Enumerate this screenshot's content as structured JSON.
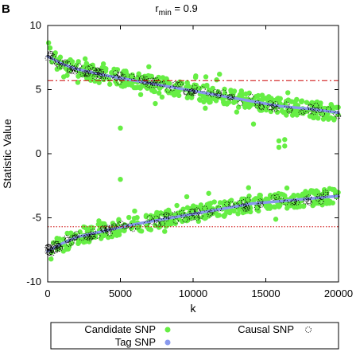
{
  "panel_label": "B",
  "chart_data": {
    "type": "scatter",
    "title_main": "r",
    "title_sub": "min",
    "title_rest": " = 0.9",
    "xlabel": "k",
    "ylabel": "Statistic Value",
    "xlim": [
      0,
      20000
    ],
    "ylim": [
      -10,
      10
    ],
    "x_ticks": [
      0,
      5000,
      10000,
      15000,
      20000
    ],
    "x_tick_labels": [
      "0",
      "5000",
      "10000",
      "15000",
      "20000"
    ],
    "y_ticks": [
      10,
      5,
      0,
      -5,
      -10
    ],
    "y_tick_labels": [
      "10",
      "5",
      "0",
      "-5",
      "-10"
    ],
    "grid": false,
    "legend_position": "bottom",
    "thresholds": [
      {
        "y": 5.7,
        "style": "dash-dot",
        "color": "#cc0000"
      },
      {
        "y": -5.7,
        "style": "dotted",
        "color": "#cc0000"
      }
    ],
    "series": [
      {
        "name": "Candidate SNP",
        "marker": "filled-circle",
        "color": "#66ee44",
        "upper_band_x": [
          0,
          500,
          1000,
          2000,
          3000,
          4000,
          5000,
          6000,
          7000,
          8000,
          9000,
          10000,
          11000,
          12000,
          13000,
          14000,
          15000,
          16000,
          17000,
          18000,
          19000,
          20000
        ],
        "upper_band_y": [
          8.5,
          7.3,
          7.0,
          6.6,
          6.3,
          6.1,
          5.9,
          5.7,
          5.5,
          5.3,
          5.1,
          4.9,
          4.7,
          4.5,
          4.3,
          4.1,
          3.9,
          3.7,
          3.6,
          3.5,
          3.3,
          3.2
        ],
        "lower_band_x": [
          0,
          500,
          1000,
          2000,
          3000,
          4000,
          5000,
          6000,
          7000,
          8000,
          9000,
          10000,
          11000,
          12000,
          13000,
          14000,
          15000,
          16000,
          17000,
          18000,
          19000,
          20000
        ],
        "lower_band_y": [
          -8.5,
          -7.3,
          -7.0,
          -6.5,
          -6.2,
          -6.0,
          -5.7,
          -5.5,
          -5.3,
          -5.1,
          -4.9,
          -4.7,
          -4.5,
          -4.3,
          -4.1,
          -3.9,
          -3.8,
          -3.7,
          -3.6,
          -3.5,
          -3.4,
          -3.3
        ],
        "outliers": [
          {
            "x": 5000,
            "y": 2.0
          },
          {
            "x": 5000,
            "y": -2.0
          },
          {
            "x": 15900,
            "y": 0.5
          },
          {
            "x": 15900,
            "y": 1.0
          },
          {
            "x": 16300,
            "y": 0.6
          },
          {
            "x": 16300,
            "y": 1.1
          }
        ]
      },
      {
        "name": "Tag SNP",
        "marker": "filled-circle",
        "color": "#8899ee",
        "upper_x": [
          0,
          1000,
          2000,
          4000,
          6000,
          8000,
          10000,
          12000,
          14000,
          16000,
          18000,
          20000
        ],
        "upper_y": [
          7.6,
          7.0,
          6.6,
          6.1,
          5.7,
          5.3,
          4.9,
          4.5,
          4.1,
          3.7,
          3.5,
          3.2
        ],
        "lower_x": [
          0,
          1000,
          2000,
          4000,
          6000,
          8000,
          10000,
          12000,
          14000,
          16000,
          18000,
          20000
        ],
        "lower_y": [
          -7.6,
          -7.0,
          -6.5,
          -6.0,
          -5.5,
          -5.1,
          -4.7,
          -4.3,
          -3.9,
          -3.7,
          -3.5,
          -3.3
        ]
      },
      {
        "name": "Causal SNP",
        "marker": "dotted-circle",
        "color": "#000000"
      }
    ]
  },
  "legend": {
    "items": [
      {
        "label": "Candidate SNP",
        "color": "#66ee44",
        "marker": "filled"
      },
      {
        "label": "Causal SNP",
        "color": "#000000",
        "marker": "dotted"
      },
      {
        "label": "Tag SNP",
        "color": "#8899ee",
        "marker": "filled"
      }
    ]
  }
}
